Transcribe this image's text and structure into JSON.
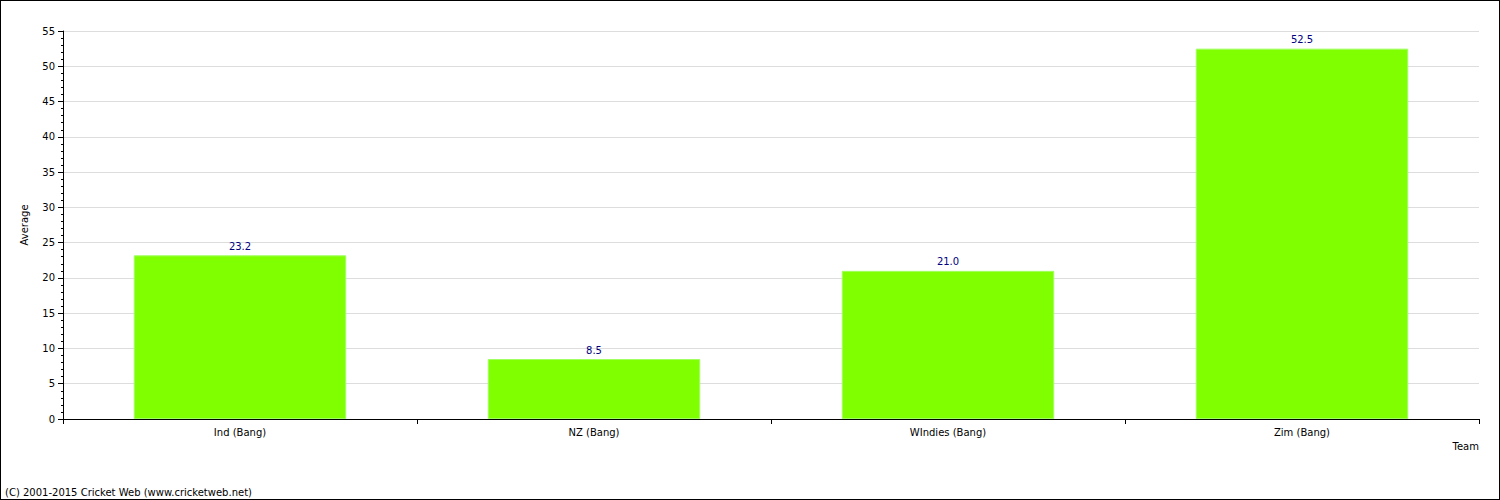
{
  "chart_data": {
    "type": "bar",
    "x_label": "Team",
    "y_label": "Average",
    "categories": [
      "Ind (Bang)",
      "NZ (Bang)",
      "WIndies (Bang)",
      "Zim (Bang)"
    ],
    "values": [
      23.2,
      8.5,
      21.0,
      52.5
    ],
    "value_labels": [
      "23.2",
      "8.5",
      "21.0",
      "52.5"
    ],
    "color": "#80ff00",
    "ylim": [
      0,
      55
    ],
    "yticks": [
      0,
      5,
      10,
      15,
      20,
      25,
      30,
      35,
      40,
      45,
      50,
      55
    ],
    "grid": true,
    "data_labels": true,
    "annotation": "(C) 2001-2015 Cricket Web (www.cricketweb.net)"
  }
}
